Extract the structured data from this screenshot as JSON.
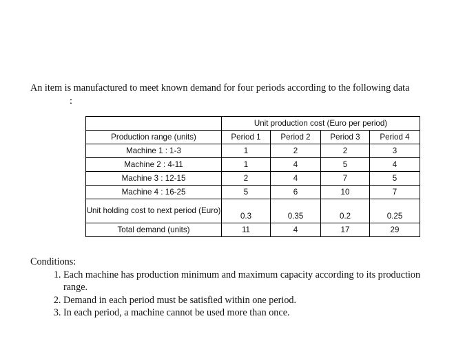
{
  "intro": {
    "text": "An item is manufactured to meet known demand for four periods according to the following data",
    "colon": ":"
  },
  "table": {
    "cost_header": "Unit production cost (Euro per period)",
    "range_header": "Production range (units)",
    "periods": [
      "Period 1",
      "Period 2",
      "Period 3",
      "Period 4"
    ],
    "rows": [
      {
        "label": "Machine 1  : 1-3",
        "values": [
          "1",
          "2",
          "2",
          "3"
        ]
      },
      {
        "label": "Machine 2  : 4-11",
        "values": [
          "1",
          "4",
          "5",
          "4"
        ]
      },
      {
        "label": "Machine 3   : 12-15",
        "values": [
          "2",
          "4",
          "7",
          "5"
        ]
      },
      {
        "label": "Machine 4   : 16-25",
        "values": [
          "5",
          "6",
          "10",
          "7"
        ]
      }
    ],
    "holding": {
      "label": "Unit holding cost to next period (Euro)",
      "values": [
        "0.3",
        "0.35",
        "0.2",
        "0.25"
      ]
    },
    "demand": {
      "label": "Total demand (units)",
      "values": [
        "11",
        "4",
        "17",
        "29"
      ]
    }
  },
  "conditions": {
    "title": "Conditions:",
    "items": [
      "Each machine has production minimum and maximum capacity according to its production range.",
      "Demand in each period must be satisfied within one period.",
      "In each period, a machine cannot be used more than once."
    ]
  }
}
